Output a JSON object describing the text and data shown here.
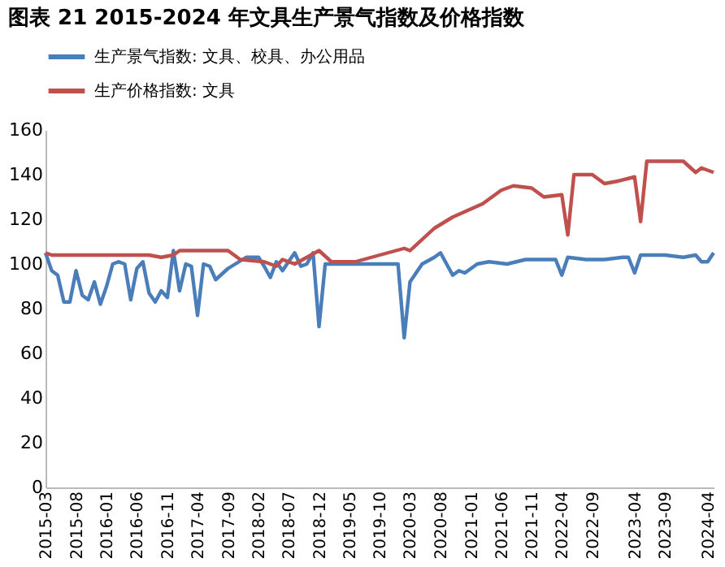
{
  "chart_data": {
    "type": "line",
    "title": "图表 21 2015-2024 年文具生产景气指数及价格指数",
    "series": [
      {
        "name": "生产景气指数: 文具、校具、办公用品",
        "color": "#4a7ebb",
        "x": [
          "2015-03",
          "2015-04",
          "2015-05",
          "2015-06",
          "2015-07",
          "2015-08",
          "2015-09",
          "2015-10",
          "2015-11",
          "2015-12",
          "2016-01",
          "2016-02",
          "2016-03",
          "2016-04",
          "2016-05",
          "2016-06",
          "2016-07",
          "2016-08",
          "2016-09",
          "2016-10",
          "2016-11",
          "2016-12",
          "2017-01",
          "2017-02",
          "2017-03",
          "2017-04",
          "2017-05",
          "2017-06",
          "2017-07",
          "2017-09",
          "2017-12",
          "2018-02",
          "2018-03",
          "2018-04",
          "2018-05",
          "2018-06",
          "2018-07",
          "2018-08",
          "2018-09",
          "2018-10",
          "2018-11",
          "2018-12",
          "2019-01",
          "2019-06",
          "2020-01",
          "2020-02",
          "2020-03",
          "2020-05",
          "2020-07",
          "2020-08",
          "2020-10",
          "2020-11",
          "2020-12",
          "2021-02",
          "2021-04",
          "2021-07",
          "2021-10",
          "2022-02",
          "2022-03",
          "2022-04",
          "2022-05",
          "2022-08",
          "2022-11",
          "2023-02",
          "2023-03",
          "2023-04",
          "2023-05",
          "2023-06",
          "2023-09",
          "2023-12",
          "2024-02",
          "2024-03",
          "2024-04",
          "2024-05"
        ],
        "values": [
          105,
          97,
          95,
          83,
          83,
          97,
          86,
          84,
          92,
          82,
          90,
          100,
          101,
          100,
          84,
          98,
          101,
          87,
          83,
          88,
          85,
          106,
          88,
          100,
          99,
          77,
          100,
          99,
          93,
          98,
          103,
          103,
          99,
          94,
          101,
          97,
          101,
          105,
          99,
          100,
          105,
          72,
          100,
          100,
          100,
          67,
          92,
          100,
          103,
          105,
          95,
          97,
          96,
          100,
          101,
          100,
          102,
          102,
          102,
          95,
          103,
          102,
          102,
          103,
          103,
          96,
          104,
          104,
          104,
          103,
          104,
          101,
          101,
          105
        ]
      },
      {
        "name": "生产价格指数: 文具",
        "color": "#c0504d",
        "x": [
          "2015-03",
          "2015-04",
          "2016-08",
          "2016-10",
          "2016-12",
          "2017-01",
          "2017-09",
          "2017-11",
          "2018-03",
          "2018-05",
          "2018-06",
          "2018-08",
          "2018-12",
          "2019-02",
          "2019-06",
          "2019-10",
          "2020-02",
          "2020-03",
          "2020-07",
          "2020-10",
          "2021-03",
          "2021-06",
          "2021-08",
          "2021-11",
          "2022-01",
          "2022-04",
          "2022-05",
          "2022-06",
          "2022-09",
          "2022-11",
          "2023-01",
          "2023-04",
          "2023-05",
          "2023-06",
          "2023-12",
          "2024-02",
          "2024-03",
          "2024-05"
        ],
        "values": [
          105,
          104,
          104,
          103,
          104,
          106,
          106,
          102,
          101,
          99,
          102,
          100,
          106,
          101,
          101,
          104,
          107,
          106,
          116,
          121,
          127,
          133,
          135,
          134,
          130,
          131,
          113,
          140,
          140,
          136,
          137,
          139,
          119,
          146,
          146,
          141,
          143,
          141
        ]
      }
    ],
    "xlim": [
      "2015-03",
      "2024-05"
    ],
    "xticks": [
      "2015-03",
      "2015-08",
      "2016-01",
      "2016-06",
      "2016-11",
      "2017-04",
      "2017-09",
      "2018-02",
      "2018-07",
      "2018-12",
      "2019-05",
      "2019-10",
      "2020-03",
      "2020-08",
      "2021-01",
      "2021-06",
      "2021-11",
      "2022-04",
      "2022-09",
      "2023-04",
      "2023-09",
      "2024-04"
    ],
    "ylim": [
      0,
      160
    ],
    "yticks": [
      0,
      20,
      40,
      60,
      80,
      100,
      120,
      140,
      160
    ],
    "grid": false,
    "legend": "top",
    "marker": "none",
    "line_style": "solid"
  }
}
